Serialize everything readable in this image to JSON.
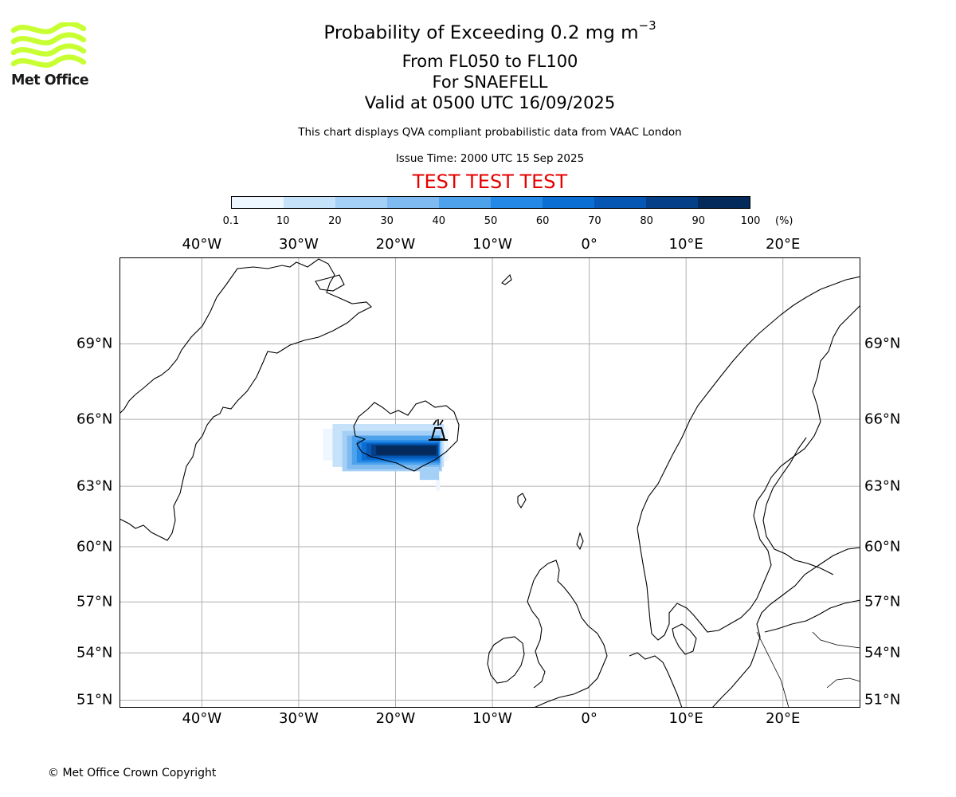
{
  "header": {
    "title": "Probability of Exceeding 0.2 mg m",
    "title_exponent": "−3",
    "line_flight_levels": "From FL050 to FL100",
    "line_volcano": "For SNAEFELL",
    "line_valid": "Valid at 0500 UTC 16/09/2025",
    "disclaimer": "This chart displays QVA compliant probabilistic data from VAAC London",
    "issue_time": "Issue Time: 2000 UTC 15 Sep 2025",
    "test_banner": "TEST TEST TEST"
  },
  "logo": {
    "text": "Met Office",
    "color": "#c8ff33"
  },
  "colorbar": {
    "ticks": [
      "0.1",
      "10",
      "20",
      "30",
      "40",
      "50",
      "60",
      "70",
      "80",
      "90",
      "100"
    ],
    "unit": "(%)",
    "colors": [
      "#eef6ff",
      "#c6e2fb",
      "#a4cff6",
      "#7fbbf0",
      "#4ea2ec",
      "#2488e6",
      "#0a6ed3",
      "#0657b3",
      "#043f87",
      "#032a5a"
    ]
  },
  "map": {
    "extent": {
      "lon_min": -48.5,
      "lon_max": 28,
      "lat_min": 50.5,
      "lat_max": 72
    },
    "lon_gridlines": [
      -40,
      -30,
      -20,
      -10,
      0,
      10,
      20
    ],
    "lon_labels": [
      "40°W",
      "30°W",
      "20°W",
      "10°W",
      "0°",
      "10°E",
      "20°E"
    ],
    "lat_gridlines": [
      69,
      66,
      63,
      60,
      57,
      54,
      51
    ],
    "lat_labels": [
      "69°N",
      "66°N",
      "63°N",
      "60°N",
      "57°N",
      "54°N",
      "51°N"
    ],
    "volcano": {
      "name": "SNAEFELL",
      "lon": -15.6,
      "lat": 64.8
    }
  },
  "footer": {
    "copyright": "© Met Office Crown Copyright"
  }
}
